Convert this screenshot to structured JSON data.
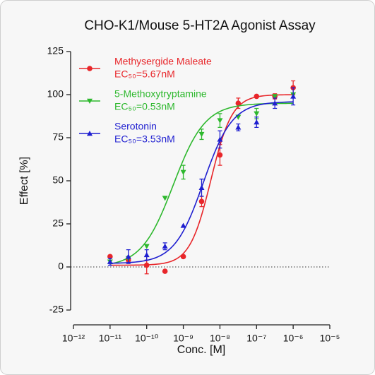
{
  "chart_data": {
    "type": "dose-response",
    "title": "CHO-K1/Mouse 5-HT2A Agonist Assay",
    "x_label": "Conc. [M]",
    "y_label": "Effect  [%]",
    "x_scale": "log",
    "xlim": [
      1e-12,
      1e-05
    ],
    "xticks": [
      {
        "value": 1e-12,
        "label": "10⁻¹²"
      },
      {
        "value": 1e-11,
        "label": "10⁻¹¹"
      },
      {
        "value": 1e-10,
        "label": "10⁻¹⁰"
      },
      {
        "value": 1e-09,
        "label": "10⁻⁹"
      },
      {
        "value": 1e-08,
        "label": "10⁻⁸"
      },
      {
        "value": 1e-07,
        "label": "10⁻⁷"
      },
      {
        "value": 1e-06,
        "label": "10⁻⁶"
      },
      {
        "value": 1e-05,
        "label": "10⁻⁵"
      }
    ],
    "ylim": [
      -25,
      125
    ],
    "yticks": [
      -25,
      0,
      25,
      50,
      75,
      100,
      125
    ],
    "reference_line": 0,
    "x": [
      1e-11,
      3.16e-11,
      1e-10,
      3.16e-10,
      1e-09,
      3.16e-09,
      1e-08,
      3.16e-08,
      1e-07,
      3.16e-07,
      1e-06
    ],
    "series": [
      {
        "name": "Methysergide Maleate",
        "ec50_label": "EC₅₀=5.67nM",
        "color": "#e8262a",
        "marker": "circle",
        "values": [
          6,
          4,
          1,
          -2.5,
          6,
          38,
          65,
          95,
          99,
          99,
          104
        ],
        "errors": [
          null,
          1.5,
          5,
          null,
          null,
          3,
          6,
          3,
          null,
          1.5,
          4
        ],
        "fit": {
          "ec50": 5.67e-09,
          "bottom": 1,
          "top": 100,
          "hill": 1.5
        }
      },
      {
        "name": "5-Methoxytryptamine",
        "ec50_label": "EC₅₀=0.53nM",
        "color": "#2db82d",
        "marker": "triangle-down",
        "values": [
          3,
          5,
          12,
          40,
          55,
          77,
          85,
          87,
          89,
          99,
          100
        ],
        "errors": [
          null,
          null,
          null,
          null,
          4,
          3,
          4,
          null,
          3,
          null,
          null
        ],
        "fit": {
          "ec50": 5.3e-10,
          "bottom": 0,
          "top": 95,
          "hill": 1
        }
      },
      {
        "name": "Serotonin",
        "ec50_label": "EC₅₀=3.53nM",
        "color": "#1f1fd0",
        "marker": "triangle-up",
        "values": [
          3,
          6,
          7,
          12,
          24,
          46,
          74,
          81,
          84,
          95,
          99
        ],
        "errors": [
          2,
          4,
          3,
          2,
          null,
          5,
          5,
          2,
          3,
          3,
          5
        ],
        "fit": {
          "ec50": 3.53e-09,
          "bottom": 2,
          "top": 96,
          "hill": 1.1
        }
      }
    ]
  }
}
